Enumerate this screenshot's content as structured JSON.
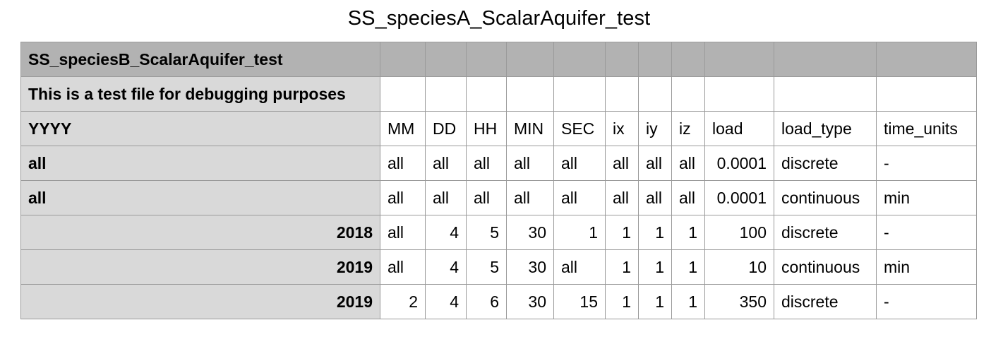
{
  "title": "SS_speciesA_ScalarAquifer_test",
  "table": {
    "rows": [
      {
        "cells": [
          "SS_speciesB_ScalarAquifer_test",
          "",
          "",
          "",
          "",
          "",
          "",
          "",
          "",
          "",
          "",
          ""
        ]
      },
      {
        "cells": [
          "This is a test file for debugging purposes",
          "",
          "",
          "",
          "",
          "",
          "",
          "",
          "",
          "",
          "",
          ""
        ]
      },
      {
        "cells": [
          "YYYY",
          "MM",
          "DD",
          "HH",
          "MIN",
          "SEC",
          "ix",
          "iy",
          "iz",
          "load",
          "load_type",
          "time_units"
        ]
      },
      {
        "cells": [
          "all",
          "all",
          "all",
          "all",
          "all",
          "all",
          "all",
          "all",
          "all",
          "0.0001",
          "discrete",
          "-"
        ]
      },
      {
        "cells": [
          "all",
          "all",
          "all",
          "all",
          "all",
          "all",
          "all",
          "all",
          "all",
          "0.0001",
          "continuous",
          "min"
        ]
      },
      {
        "cells": [
          "2018",
          "all",
          "4",
          "5",
          "30",
          "1",
          "1",
          "1",
          "1",
          "100",
          "discrete",
          "-"
        ]
      },
      {
        "cells": [
          "2019",
          "all",
          "4",
          "5",
          "30",
          "all",
          "1",
          "1",
          "1",
          "10",
          "continuous",
          "min"
        ]
      },
      {
        "cells": [
          "2019",
          "2",
          "4",
          "6",
          "30",
          "15",
          "1",
          "1",
          "1",
          "350",
          "discrete",
          "-"
        ]
      }
    ]
  }
}
